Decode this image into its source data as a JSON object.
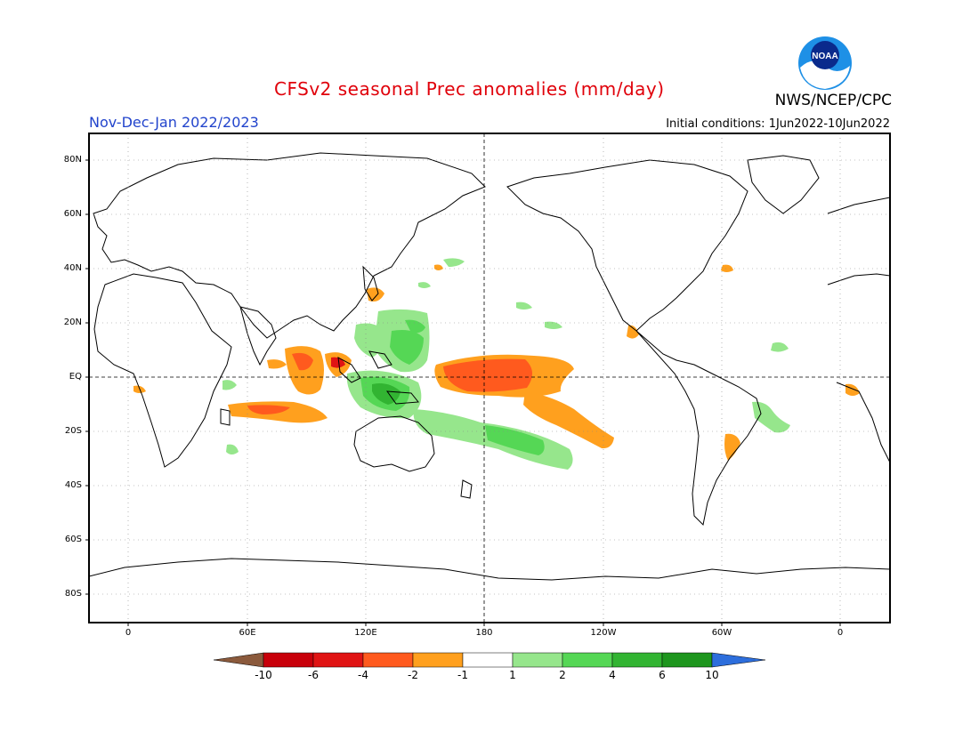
{
  "header": {
    "title": "CFSv2 seasonal Prec anomalies (mm/day)",
    "season": "Nov-Dec-Jan 2022/2023",
    "initial_conditions": "Initial conditions: 1Jun2022-10Jun2022",
    "agency": "NWS/NCEP/CPC",
    "logo_text": "NOAA"
  },
  "map": {
    "projection": "equirectangular",
    "lon_range": [
      -30,
      300
    ],
    "lat_range": [
      -90,
      90
    ],
    "lat_ticks": [
      "80N",
      "60N",
      "40N",
      "20N",
      "EQ",
      "20S",
      "40S",
      "60S",
      "80S"
    ],
    "lon_ticks": [
      "0",
      "60E",
      "120E",
      "180",
      "120W",
      "60W",
      "0"
    ],
    "grid": "dotted",
    "reference_lines": [
      "equator",
      "dateline"
    ]
  },
  "colorbar": {
    "labels": [
      "-10",
      "-6",
      "-4",
      "-2",
      "-1",
      "1",
      "2",
      "4",
      "6",
      "10"
    ],
    "colors": [
      "#8b5a3c",
      "#c8000a",
      "#e01414",
      "#ff5a1e",
      "#ffa01e",
      "#ffffff",
      "#96e68c",
      "#55d755",
      "#32b432",
      "#1e961e",
      "#2d6edc"
    ]
  }
}
